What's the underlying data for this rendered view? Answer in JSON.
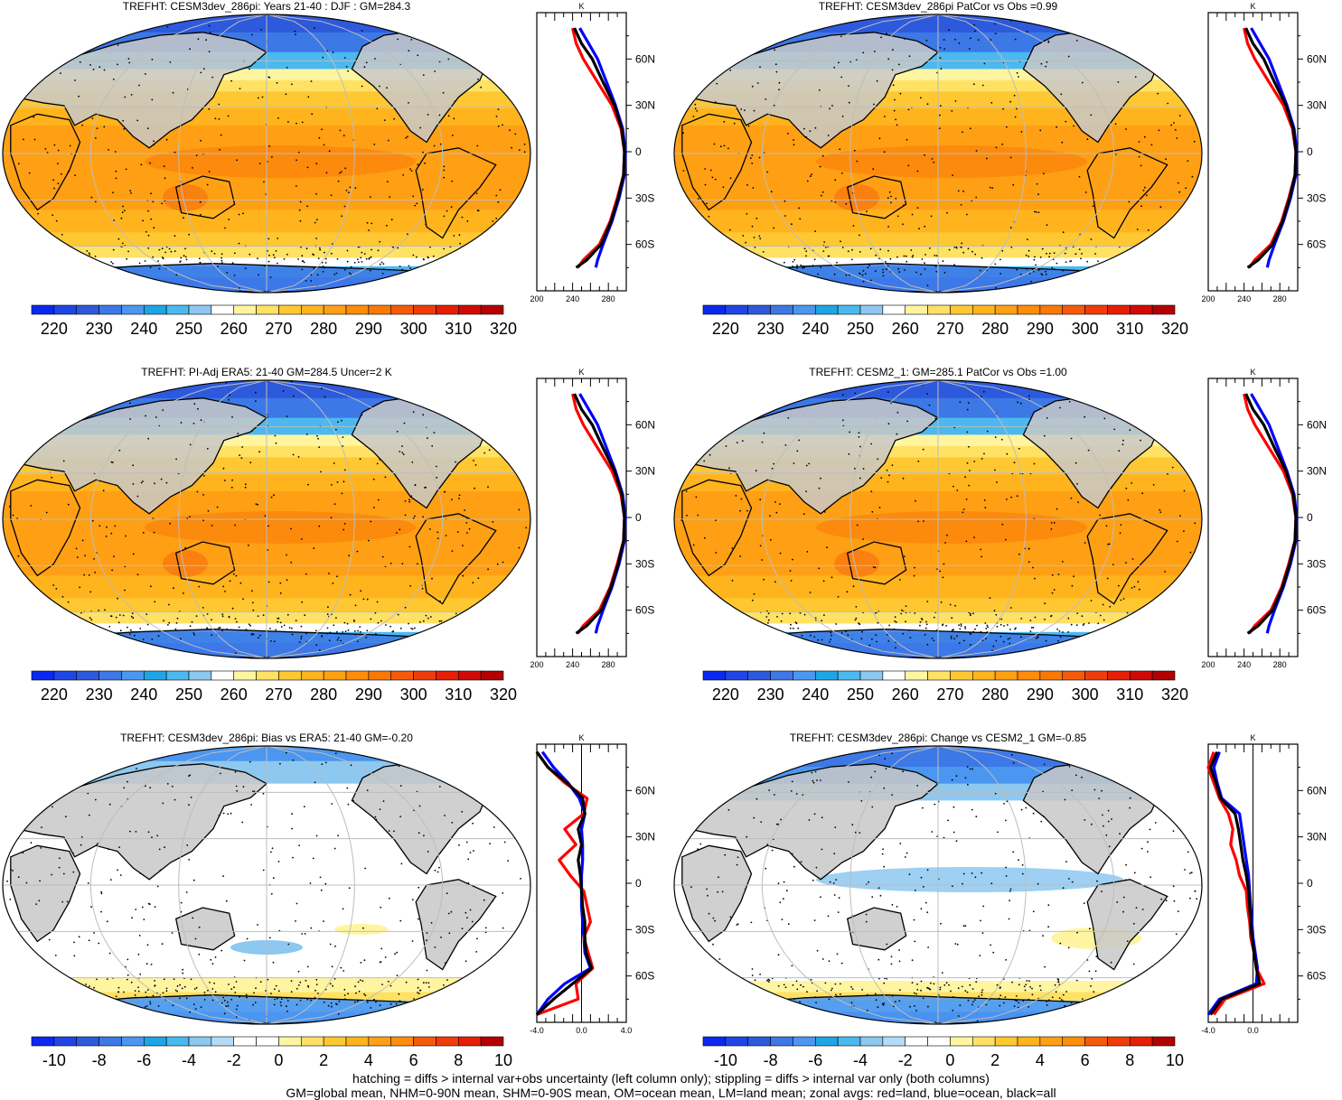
{
  "colors": {
    "ocean_profile": "#0000ff",
    "land_profile": "#ff0000",
    "all_profile": "#000000",
    "land_mask": "#c8c8c8",
    "stipple": "#000000"
  },
  "colorbars": {
    "abs": {
      "labels": [
        "220",
        "230",
        "240",
        "250",
        "260",
        "270",
        "280",
        "290",
        "300",
        "310",
        "320"
      ],
      "colors": [
        "#0a28f0",
        "#1e46e6",
        "#2d5adc",
        "#3c78e6",
        "#4b96f0",
        "#1ea5e6",
        "#4bb9f0",
        "#8cc8f0",
        "#ffffff",
        "#fff5a0",
        "#ffe164",
        "#ffc832",
        "#ffb41e",
        "#ffa014",
        "#ff8c0a",
        "#fa7805",
        "#f55a0a",
        "#f03c0a",
        "#e61e05",
        "#d20a05",
        "#b40000"
      ]
    },
    "diff": {
      "labels": [
        "-10",
        "-8",
        "-6",
        "-4",
        "-2",
        "0",
        "2",
        "4",
        "6",
        "8",
        "10"
      ],
      "colors": [
        "#0a28f0",
        "#1e46e6",
        "#2d5adc",
        "#3c78e6",
        "#4b96f0",
        "#1ea5e6",
        "#4bb9f0",
        "#8cc8f0",
        "#b4dcf5",
        "#ffffff",
        "#ffffff",
        "#fff5a0",
        "#ffe164",
        "#ffc832",
        "#ffb41e",
        "#ffa014",
        "#ff8c0a",
        "#f55a0a",
        "#f03c0a",
        "#e61e05",
        "#b40000"
      ]
    }
  },
  "panels": [
    {
      "id": "p1",
      "title": "TREFHT: CESM3dev_286pi: Years 21-40 : DJF : GM=284.3",
      "kind": "abs",
      "profile_unit": "K",
      "profile_xticks": [
        "200",
        "240",
        "280"
      ],
      "lat_labels": [
        "60N",
        "30N",
        "0",
        "30S",
        "60S"
      ]
    },
    {
      "id": "p2",
      "title": "TREFHT: CESM3dev_286pi PatCor vs Obs =0.99",
      "kind": "abs",
      "profile_unit": "K",
      "profile_xticks": [
        "200",
        "240",
        "280"
      ],
      "lat_labels": [
        "60N",
        "30N",
        "0",
        "30S",
        "60S"
      ]
    },
    {
      "id": "p3",
      "title": "TREFHT: PI-Adj ERA5: 21-40 GM=284.5 Uncer=2 K",
      "kind": "abs",
      "profile_unit": "K",
      "profile_xticks": [
        "200",
        "240",
        "280"
      ],
      "lat_labels": [
        "60N",
        "30N",
        "0",
        "30S",
        "60S"
      ]
    },
    {
      "id": "p4",
      "title": "TREFHT: CESM2_1: GM=285.1 PatCor vs Obs =1.00",
      "kind": "abs",
      "profile_unit": "K",
      "profile_xticks": [
        "200",
        "240",
        "280"
      ],
      "lat_labels": [
        "60N",
        "30N",
        "0",
        "30S",
        "60S"
      ]
    },
    {
      "id": "p5",
      "title": "TREFHT: CESM3dev_286pi: Bias vs ERA5: 21-40 GM=-0.20",
      "kind": "diff",
      "profile_unit": "K",
      "profile_xticks": [
        "-4.0",
        "0.0",
        "4.0"
      ],
      "lat_labels": [
        "60N",
        "30N",
        "0",
        "30S",
        "60S"
      ]
    },
    {
      "id": "p6",
      "title": "TREFHT: CESM3dev_286pi: Change vs CESM2_1 GM=-0.85",
      "kind": "diff",
      "profile_unit": "K",
      "profile_xticks": [
        "-4.0",
        "0.0"
      ],
      "lat_labels": [
        "60N",
        "30N",
        "0",
        "30S",
        "60S"
      ]
    }
  ],
  "chart_data": [
    {
      "type": "heatmap",
      "title": "TREFHT: CESM3dev_286pi: Years 21-40 : DJF : GM=284.3",
      "colorbar_labels": [
        "220",
        "230",
        "240",
        "250",
        "260",
        "270",
        "280",
        "290",
        "300",
        "310",
        "320"
      ],
      "zonal_profile": {
        "type": "line",
        "xlabel": "K",
        "xlim": [
          200,
          300
        ],
        "lat": [
          80,
          70,
          60,
          45,
          30,
          15,
          0,
          -15,
          -30,
          -45,
          -60,
          -70,
          -75
        ],
        "series": [
          {
            "name": "land",
            "values": [
              240,
              244,
              252,
              268,
              284,
              294,
              298,
              297,
              290,
              282,
              270,
              252,
              246
            ]
          },
          {
            "name": "ocean",
            "values": [
              248,
              258,
              268,
              278,
              288,
              296,
              299,
              298,
              292,
              284,
              274,
              268,
              266
            ]
          },
          {
            "name": "all",
            "values": [
              242,
              250,
              262,
              274,
              287,
              295,
              298,
              297,
              291,
              283,
              272,
              256,
              244
            ]
          }
        ]
      }
    },
    {
      "type": "heatmap",
      "title": "TREFHT: CESM3dev_286pi PatCor vs Obs =0.99",
      "colorbar_labels": [
        "220",
        "230",
        "240",
        "250",
        "260",
        "270",
        "280",
        "290",
        "300",
        "310",
        "320"
      ],
      "zonal_profile": {
        "type": "line",
        "xlabel": "K",
        "xlim": [
          200,
          300
        ],
        "lat": [
          80,
          70,
          60,
          45,
          30,
          15,
          0,
          -15,
          -30,
          -45,
          -60,
          -70,
          -75
        ],
        "series": [
          {
            "name": "land",
            "values": [
              240,
              244,
              252,
              268,
              284,
              294,
              298,
              297,
              290,
              282,
              270,
              252,
              246
            ]
          },
          {
            "name": "ocean",
            "values": [
              248,
              258,
              268,
              278,
              288,
              296,
              299,
              298,
              292,
              284,
              274,
              268,
              266
            ]
          },
          {
            "name": "all",
            "values": [
              242,
              250,
              262,
              274,
              287,
              295,
              298,
              297,
              291,
              283,
              272,
              256,
              244
            ]
          }
        ]
      }
    },
    {
      "type": "heatmap",
      "title": "TREFHT: PI-Adj ERA5: 21-40 GM=284.5 Uncer=2 K",
      "colorbar_labels": [
        "220",
        "230",
        "240",
        "250",
        "260",
        "270",
        "280",
        "290",
        "300",
        "310",
        "320"
      ],
      "zonal_profile": {
        "type": "line",
        "xlabel": "K",
        "xlim": [
          200,
          300
        ],
        "lat": [
          80,
          70,
          60,
          45,
          30,
          15,
          0,
          -15,
          -30,
          -45,
          -60,
          -70,
          -75
        ],
        "series": [
          {
            "name": "land",
            "values": [
              240,
              244,
              252,
              268,
              284,
              294,
              298,
              297,
              290,
              282,
              270,
              252,
              246
            ]
          },
          {
            "name": "ocean",
            "values": [
              248,
              258,
              268,
              278,
              288,
              296,
              299,
              298,
              292,
              284,
              274,
              268,
              266
            ]
          },
          {
            "name": "all",
            "values": [
              242,
              250,
              262,
              274,
              287,
              295,
              298,
              297,
              291,
              283,
              272,
              256,
              244
            ]
          }
        ]
      }
    },
    {
      "type": "heatmap",
      "title": "TREFHT: CESM2_1: GM=285.1 PatCor vs Obs =1.00",
      "colorbar_labels": [
        "220",
        "230",
        "240",
        "250",
        "260",
        "270",
        "280",
        "290",
        "300",
        "310",
        "320"
      ],
      "zonal_profile": {
        "type": "line",
        "xlabel": "K",
        "xlim": [
          200,
          300
        ],
        "lat": [
          80,
          70,
          60,
          45,
          30,
          15,
          0,
          -15,
          -30,
          -45,
          -60,
          -70,
          -75
        ],
        "series": [
          {
            "name": "land",
            "values": [
              240,
              244,
              252,
              268,
              284,
              294,
              298,
              297,
              290,
              282,
              270,
              252,
              246
            ]
          },
          {
            "name": "ocean",
            "values": [
              248,
              258,
              268,
              278,
              288,
              296,
              299,
              298,
              292,
              284,
              274,
              268,
              266
            ]
          },
          {
            "name": "all",
            "values": [
              242,
              250,
              262,
              274,
              287,
              295,
              298,
              297,
              291,
              283,
              272,
              256,
              244
            ]
          }
        ]
      }
    },
    {
      "type": "heatmap",
      "title": "TREFHT: CESM3dev_286pi: Bias vs ERA5: 21-40 GM=-0.20",
      "colorbar_labels": [
        "-10",
        "-8",
        "-6",
        "-4",
        "-2",
        "0",
        "2",
        "4",
        "6",
        "8",
        "10"
      ],
      "zonal_profile": {
        "type": "line",
        "xlabel": "K",
        "xlim": [
          -4,
          4
        ],
        "lat": [
          85,
          75,
          65,
          55,
          45,
          35,
          25,
          15,
          5,
          -5,
          -15,
          -25,
          -35,
          -45,
          -55,
          -65,
          -75,
          -85
        ],
        "series": [
          {
            "name": "land",
            "values": [
              -4,
              -3,
              -1.5,
              0.5,
              0.2,
              -1.5,
              -0.5,
              -2.0,
              -1.0,
              0.2,
              0.5,
              0.8,
              0.2,
              0.6,
              1.0,
              -0.5,
              -0.3,
              -4
            ],
            "note": ""
          },
          {
            "name": "ocean",
            "values": [
              -3.5,
              -2.5,
              -1.2,
              -0.2,
              0.3,
              0.0,
              0.1,
              0.1,
              0.0,
              0.0,
              0.0,
              0.1,
              0.2,
              0.3,
              0.8,
              -1.5,
              -3.0,
              -4
            ],
            "note": ""
          },
          {
            "name": "all",
            "values": [
              -4,
              -3,
              -1.3,
              0.1,
              0.3,
              -0.3,
              0.0,
              -0.3,
              -0.1,
              0.0,
              0.1,
              0.3,
              0.3,
              0.4,
              0.9,
              -0.8,
              -2.5,
              -4
            ]
          }
        ]
      }
    },
    {
      "type": "heatmap",
      "title": "TREFHT: CESM3dev_286pi: Change vs CESM2_1 GM=-0.85",
      "colorbar_labels": [
        "-10",
        "-8",
        "-6",
        "-4",
        "-2",
        "0",
        "2",
        "4",
        "6",
        "8",
        "10"
      ],
      "zonal_profile": {
        "type": "line",
        "xlabel": "K",
        "xlim": [
          -4,
          4
        ],
        "lat": [
          85,
          75,
          65,
          55,
          45,
          35,
          25,
          15,
          5,
          -5,
          -15,
          -25,
          -35,
          -45,
          -55,
          -65,
          -75,
          -85
        ],
        "series": [
          {
            "name": "land",
            "values": [
              -3.5,
              -4.5,
              -3.5,
              -3.0,
              -2.2,
              -1.8,
              -2.0,
              -1.5,
              -1.2,
              -0.6,
              -0.5,
              -0.3,
              -0.2,
              0.1,
              0.3,
              1.0,
              -2.5,
              -3.5
            ]
          },
          {
            "name": "ocean",
            "values": [
              -3.0,
              -3.5,
              -3.2,
              -2.8,
              -1.2,
              -1.0,
              -0.8,
              -0.6,
              -0.4,
              -0.3,
              -0.2,
              -0.1,
              0.0,
              0.2,
              0.4,
              0.3,
              -3.0,
              -4.0
            ]
          },
          {
            "name": "all",
            "values": [
              -3.2,
              -3.8,
              -3.3,
              -2.9,
              -1.6,
              -1.3,
              -1.1,
              -0.9,
              -0.6,
              -0.4,
              -0.3,
              -0.2,
              -0.1,
              0.1,
              0.3,
              0.6,
              -2.8,
              -3.8
            ]
          }
        ]
      }
    }
  ],
  "footer": {
    "line1": "hatching = diffs > internal var+obs uncertainty (left column only); stippling = diffs > internal var only (both columns)",
    "line2": "GM=global mean, NHM=0-90N mean, SHM=0-90S mean, OM=ocean mean, LM=land mean; zonal avgs: red=land, blue=ocean, black=all"
  }
}
